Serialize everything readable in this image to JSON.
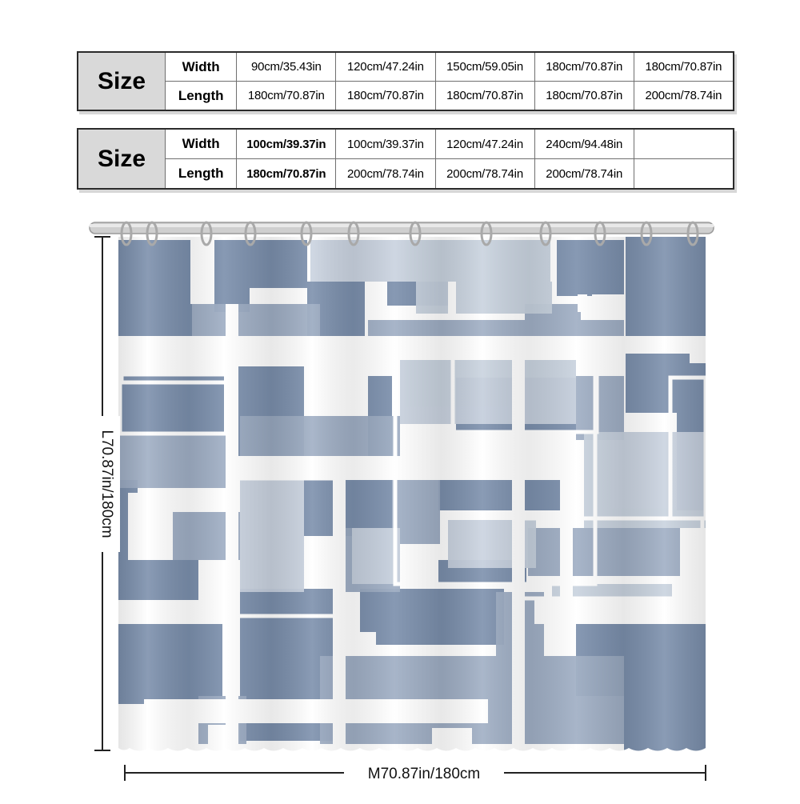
{
  "table1": {
    "size_label": "Size",
    "rows": [
      {
        "label": "Width",
        "values": [
          "90cm/35.43in",
          "120cm/47.24in",
          "150cm/59.05in",
          "180cm/70.87in",
          "180cm/70.87in"
        ]
      },
      {
        "label": "Length",
        "values": [
          "180cm/70.87in",
          "180cm/70.87in",
          "180cm/70.87in",
          "180cm/70.87in",
          "200cm/78.74in"
        ]
      }
    ]
  },
  "table2": {
    "size_label": "Size",
    "rows": [
      {
        "label": "Width",
        "values": [
          "100cm/39.37in",
          "100cm/39.37in",
          "120cm/47.24in",
          "240cm/94.48in",
          ""
        ]
      },
      {
        "label": "Length",
        "values": [
          "180cm/70.87in",
          "200cm/78.74in",
          "200cm/78.74in",
          "200cm/78.74in",
          ""
        ]
      }
    ]
  },
  "curtain": {
    "height_label": "L70.87in/180cm",
    "width_label": "M70.87in/180cm",
    "colors": {
      "dark": "#7a8eab",
      "mid": "#99a9c0",
      "light": "#c6d0dd",
      "white": "#ffffff",
      "rod": "#cfcfcf"
    }
  }
}
